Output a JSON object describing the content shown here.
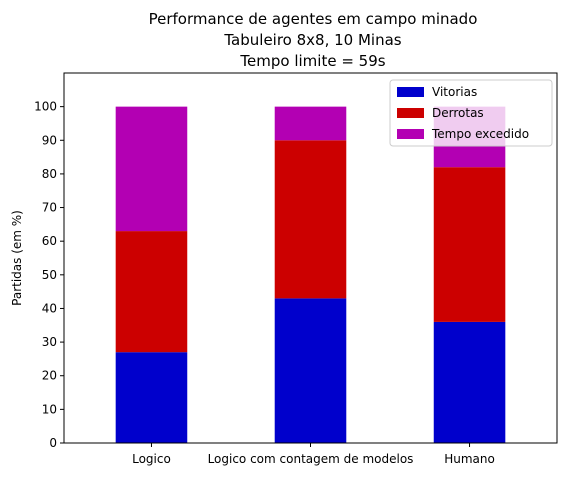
{
  "chart_data": {
    "type": "bar",
    "stacked": true,
    "title": [
      "Performance de agentes em campo minado",
      "Tabuleiro 8x8, 10 Minas",
      "Tempo limite = 59s"
    ],
    "xlabel": "",
    "ylabel": "Partidas (em %)",
    "ylim": [
      0,
      110
    ],
    "yticks": [
      "0",
      "10",
      "20",
      "30",
      "40",
      "50",
      "60",
      "70",
      "80",
      "90",
      "100"
    ],
    "categories": [
      "Logico",
      "Logico com contagem de modelos",
      "Humano"
    ],
    "series": [
      {
        "name": "Vitorias",
        "values": [
          27,
          43,
          36
        ],
        "color": "#0000cc"
      },
      {
        "name": "Derrotas",
        "values": [
          36,
          47,
          46
        ],
        "color": "#cc0000"
      },
      {
        "name": "Tempo excedido",
        "values": [
          37,
          10,
          18
        ],
        "color": "#b300b3"
      }
    ],
    "legend_position": "top-right",
    "grid": false
  }
}
